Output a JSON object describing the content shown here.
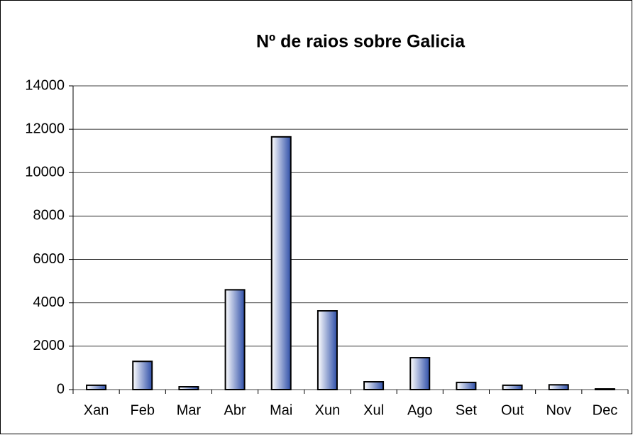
{
  "chart_data": {
    "type": "bar",
    "title": "Nº de raios sobre Galicia",
    "categories": [
      "Xan",
      "Feb",
      "Mar",
      "Abr",
      "Mai",
      "Xun",
      "Xul",
      "Ago",
      "Set",
      "Out",
      "Nov",
      "Dec"
    ],
    "values": [
      200,
      1300,
      130,
      4600,
      11650,
      3630,
      360,
      1470,
      330,
      200,
      220,
      30
    ],
    "color": "#2f4fa8",
    "ylim": [
      0,
      14000
    ],
    "yticks": [
      0,
      2000,
      4000,
      6000,
      8000,
      10000,
      12000,
      14000
    ],
    "grid": true
  }
}
